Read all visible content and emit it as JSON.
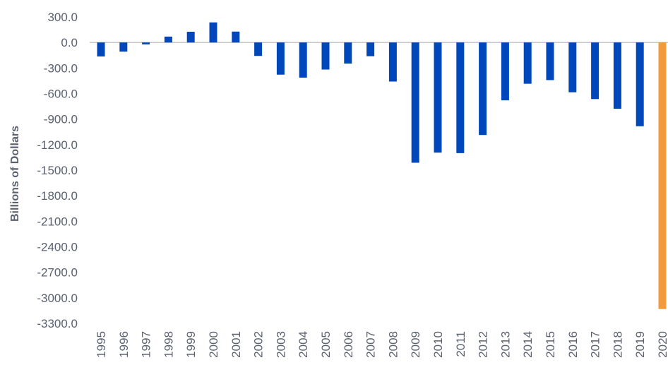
{
  "chart_data": {
    "type": "bar",
    "title": "",
    "xlabel": "",
    "ylabel": "Billions of Dollars",
    "ylim": [
      -3300,
      300
    ],
    "yticks": [
      300,
      0,
      -300,
      -600,
      -900,
      -1200,
      -1500,
      -1800,
      -2100,
      -2400,
      -2700,
      -3000,
      -3300
    ],
    "ytick_labels": [
      "300.0",
      "0.0",
      "-300.0",
      "-600.0",
      "-900.0",
      "-1200.0",
      "-1500.0",
      "-1800.0",
      "-2100.0",
      "-2400.0",
      "-2700.0",
      "-3000.0",
      "-3300.0"
    ],
    "categories": [
      "1995",
      "1996",
      "1997",
      "1998",
      "1999",
      "2000",
      "2001",
      "2002",
      "2003",
      "2004",
      "2005",
      "2006",
      "2007",
      "2008",
      "2009",
      "2010",
      "2011",
      "2012",
      "2013",
      "2014",
      "2015",
      "2016",
      "2017",
      "2018",
      "2019",
      "2020"
    ],
    "values": [
      -164,
      -107,
      -22,
      69,
      126,
      236,
      128,
      -158,
      -378,
      -413,
      -318,
      -248,
      -161,
      -459,
      -1413,
      -1294,
      -1300,
      -1087,
      -680,
      -485,
      -442,
      -585,
      -665,
      -779,
      -984,
      -3132
    ],
    "grid": false,
    "legend": "none",
    "colors": {
      "default_bar": "#0047bb",
      "highlight_bar": "#f39a3b",
      "highlight_category": "2020",
      "text": "#5b6170",
      "zero_line": "#a6a6a6"
    }
  }
}
